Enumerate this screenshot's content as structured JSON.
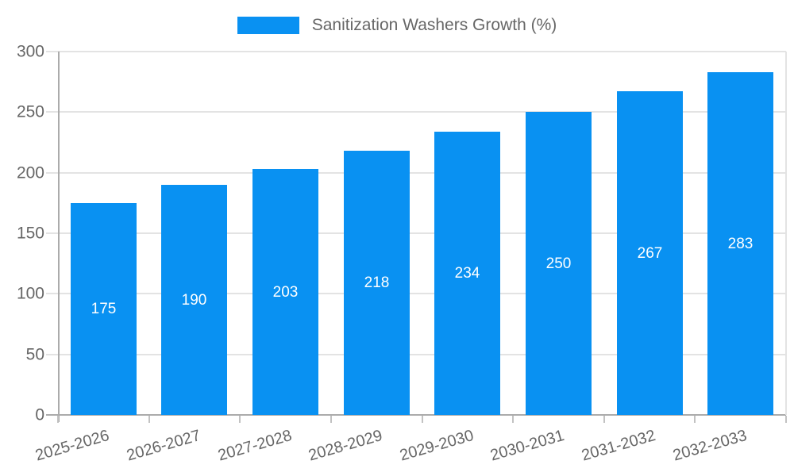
{
  "chart_data": {
    "type": "bar",
    "title": "Sanitization Washers Growth (%)",
    "categories": [
      "2025-2026",
      "2026-2027",
      "2027-2028",
      "2028-2029",
      "2029-2030",
      "2030-2031",
      "2031-2032",
      "2032-2033"
    ],
    "values": [
      175,
      190,
      203,
      218,
      234,
      250,
      267,
      283
    ],
    "xlabel": "",
    "ylabel": "",
    "ylim": [
      0,
      300
    ],
    "yticks": [
      0,
      50,
      100,
      150,
      200,
      250,
      300
    ],
    "legend_position": "top",
    "grid": true,
    "bar_labels_inside": true
  },
  "colors": {
    "bar": "#0991f2",
    "grid": "#e3e3e3",
    "axis": "#ababab",
    "tick": "#c2c2c2",
    "tick_text": "#666666",
    "legend_text": "#666666",
    "bar_label_text": "#ffffff",
    "background": "#ffffff"
  }
}
